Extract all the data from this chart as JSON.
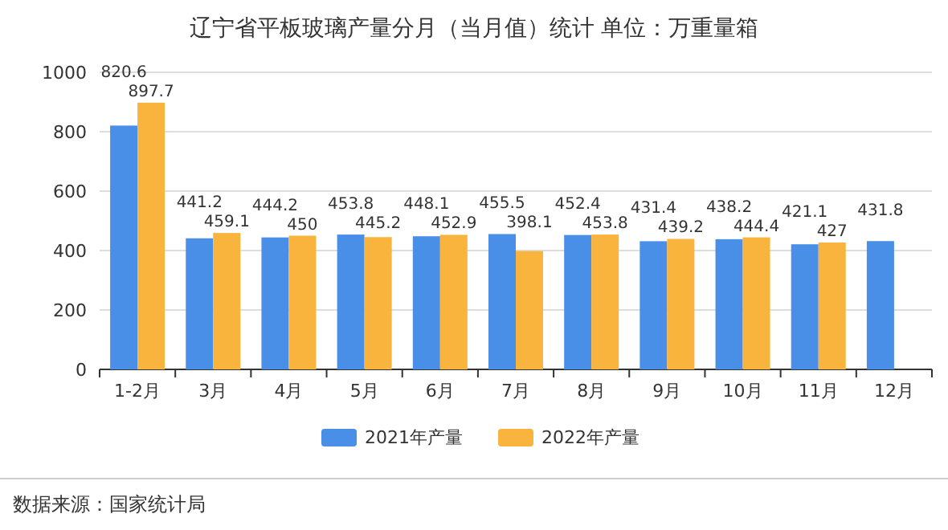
{
  "chart_data": {
    "type": "bar",
    "title": "辽宁省平板玻璃产量分月（当月值）统计 单位：万重量箱",
    "categories": [
      "1-2月",
      "3月",
      "4月",
      "5月",
      "6月",
      "7月",
      "8月",
      "9月",
      "10月",
      "11月",
      "12月"
    ],
    "series": [
      {
        "name": "2021年产量",
        "color": "#4a8fe7",
        "values": [
          820.6,
          441.2,
          444.2,
          453.8,
          448.1,
          455.5,
          452.4,
          431.4,
          438.2,
          421.1,
          431.8
        ]
      },
      {
        "name": "2022年产量",
        "color": "#f8b43c",
        "values": [
          897.7,
          459.1,
          450,
          445.2,
          452.9,
          398.1,
          453.8,
          439.2,
          444.4,
          427,
          null
        ]
      }
    ],
    "ylim": [
      0,
      1000
    ],
    "yticks": [
      0,
      200,
      400,
      600,
      800,
      1000
    ],
    "grid": "y",
    "legend": "bottom",
    "data_labels": true,
    "annotations": [
      "数据来源：国家统计局"
    ]
  }
}
